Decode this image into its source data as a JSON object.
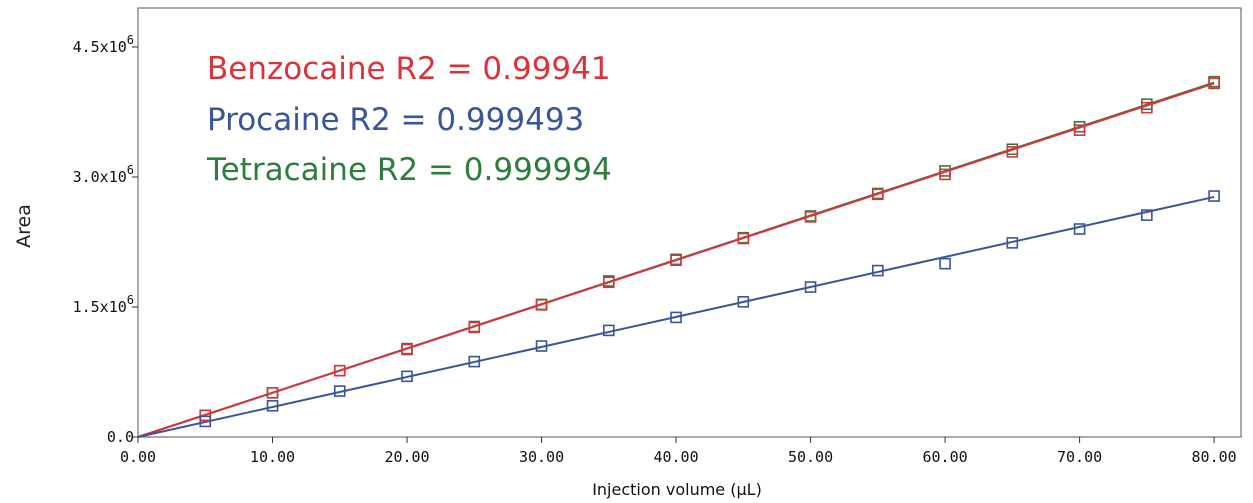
{
  "chart_data": {
    "type": "scatter",
    "xlabel": "Injection volume (µL)",
    "ylabel": "Area",
    "xlim": [
      0,
      82
    ],
    "ylim": [
      0,
      4950000
    ],
    "x_ticks": [
      0,
      10,
      20,
      30,
      40,
      50,
      60,
      70,
      80
    ],
    "x_tick_labels": [
      "0.00",
      "10.00",
      "20.00",
      "30.00",
      "40.00",
      "50.00",
      "60.00",
      "70.00",
      "80.00"
    ],
    "y_ticks": [
      0,
      1500000,
      3000000,
      4500000
    ],
    "y_tick_labels": [
      {
        "base": "0.0",
        "exp": ""
      },
      {
        "base": "1.5x10",
        "exp": "6"
      },
      {
        "base": "3.0x10",
        "exp": "6"
      },
      {
        "base": "4.5x10",
        "exp": "6"
      }
    ],
    "grid": false,
    "legend": "none",
    "annotations": [
      {
        "text": "Benzocaine R2 = 0.99941",
        "color": "#d9333c"
      },
      {
        "text": "Procaine R2 = 0.999493",
        "color": "#3a559a"
      },
      {
        "text": "Tetracaine R2 = 0.999994",
        "color": "#2e7d3c"
      }
    ],
    "series": [
      {
        "color": "#2e7d3c",
        "fit": [
          0,
          0,
          80,
          4090000
        ],
        "x": [
          5,
          10,
          15,
          20,
          25,
          30,
          35,
          40,
          45,
          50,
          55,
          60,
          65,
          70,
          75,
          80
        ],
        "y": [
          250000,
          510000,
          765000,
          1020000,
          1275000,
          1530000,
          1800000,
          2050000,
          2300000,
          2550000,
          2810000,
          3070000,
          3320000,
          3580000,
          3840000,
          4100000
        ]
      },
      {
        "color": "#d9333c",
        "fit": [
          0,
          0,
          80,
          4080000
        ],
        "x": [
          5,
          10,
          15,
          20,
          25,
          30,
          35,
          40,
          45,
          50,
          55,
          60,
          65,
          70,
          75,
          80
        ],
        "y": [
          250000,
          510000,
          765000,
          1010000,
          1265000,
          1525000,
          1785000,
          2040000,
          2290000,
          2540000,
          2800000,
          3030000,
          3290000,
          3540000,
          3800000,
          4080000
        ]
      },
      {
        "color": "#3a559a",
        "fit": [
          0,
          0,
          80,
          2770000
        ],
        "x": [
          5,
          10,
          15,
          20,
          25,
          30,
          35,
          40,
          45,
          50,
          55,
          60,
          65,
          70,
          75,
          80
        ],
        "y": [
          180000,
          360000,
          530000,
          700000,
          870000,
          1050000,
          1230000,
          1380000,
          1560000,
          1730000,
          1920000,
          2000000,
          2240000,
          2400000,
          2560000,
          2780000
        ]
      }
    ]
  }
}
